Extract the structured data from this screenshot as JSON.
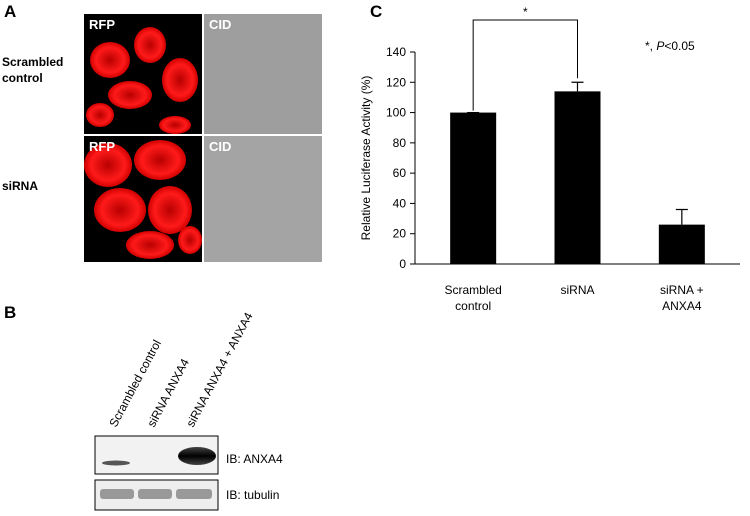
{
  "panel_a": {
    "label": "A",
    "rows": [
      "Scrambled\ncontrol",
      "siRNA"
    ],
    "columns": [
      "RFP",
      "CID"
    ]
  },
  "panel_b": {
    "label": "B",
    "lanes": [
      "Scrambled control",
      "siRNA ANXA4",
      "siRNA ANXA4 + ANXA4"
    ],
    "blots": [
      "IB: ANXA4",
      "IB: tubulin"
    ]
  },
  "chart_data": {
    "type": "bar",
    "panel_label": "C",
    "y_label": "Relative  Luciferase Activity (%)",
    "categories": [
      "Scrambled\ncontrol",
      "siRNA",
      "siRNA +\nANXA4"
    ],
    "values": [
      100,
      114,
      26
    ],
    "errors": [
      0,
      6,
      10
    ],
    "color": "#000000",
    "ylim": [
      0,
      140
    ],
    "yticks": [
      0,
      20,
      40,
      60,
      80,
      100,
      120,
      140
    ],
    "significance": "*",
    "annotation": [
      "*, ",
      "P",
      "<0.05"
    ]
  }
}
